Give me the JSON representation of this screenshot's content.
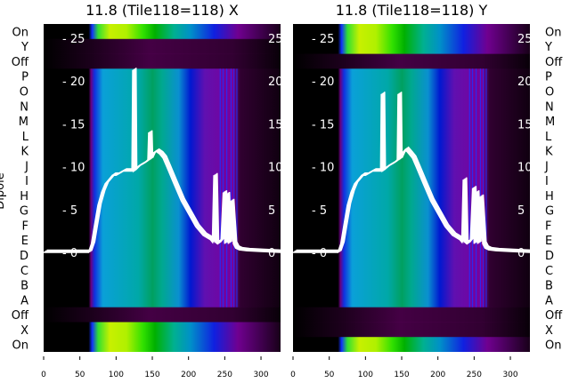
{
  "chart_data": {
    "type": "heatmap",
    "ylabel": "Dipole",
    "row_labels": [
      "On",
      "Y",
      "Off",
      "P",
      "O",
      "N",
      "M",
      "L",
      "K",
      "J",
      "I",
      "H",
      "G",
      "F",
      "E",
      "D",
      "C",
      "B",
      "A",
      "Off",
      "X",
      "On"
    ],
    "x_ticks": [
      0,
      50,
      100,
      150,
      200,
      250,
      300
    ],
    "xlim": [
      0,
      327
    ],
    "overlay_ticks": [
      0,
      5,
      10,
      15,
      20,
      25
    ],
    "overlay_ylim": [
      0,
      25
    ],
    "panels": [
      {
        "title": "11.8 (Tile118=118) X",
        "bright_rows": [
          "On-top",
          "X",
          "On-bottom"
        ],
        "bright_top": 1,
        "bright_bottom": 2,
        "curve": {
          "x": [
            0,
            62,
            66,
            70,
            75,
            80,
            85,
            90,
            95,
            100,
            110,
            120,
            122,
            123,
            124,
            130,
            140,
            144,
            145,
            146,
            150,
            155,
            160,
            165,
            170,
            180,
            190,
            200,
            210,
            220,
            230,
            233,
            235,
            237,
            240,
            245,
            248,
            250,
            252,
            255,
            258,
            262,
            265,
            270,
            280,
            300,
            327
          ],
          "y": [
            0,
            0,
            1,
            3,
            5.5,
            7,
            8,
            8.5,
            9,
            9,
            9.5,
            9.5,
            9.5,
            21.3,
            9.5,
            10,
            10.5,
            10.8,
            14,
            10.8,
            11.5,
            11.8,
            11.5,
            11,
            10,
            8,
            6,
            4.5,
            3,
            2,
            1.5,
            1.2,
            9,
            1.2,
            1,
            1.5,
            7,
            1,
            6.8,
            1,
            6,
            1,
            0.5,
            0.3,
            0.2,
            0.1,
            0
          ]
        }
      },
      {
        "title": "11.8 (Tile118=118) Y",
        "bright_top": 2,
        "bright_bottom": 1,
        "curve": {
          "x": [
            0,
            62,
            66,
            70,
            75,
            80,
            85,
            90,
            95,
            100,
            110,
            120,
            121,
            122,
            123,
            130,
            140,
            144,
            145,
            146,
            150,
            155,
            160,
            165,
            170,
            180,
            190,
            200,
            210,
            220,
            230,
            233,
            235,
            237,
            240,
            245,
            248,
            250,
            252,
            255,
            258,
            262,
            265,
            270,
            280,
            300,
            327
          ],
          "y": [
            0,
            0,
            1,
            3,
            5.5,
            7,
            8,
            8.5,
            9,
            9,
            9.5,
            9.5,
            9.5,
            18.5,
            9.5,
            10,
            10.5,
            10.8,
            18.5,
            10.8,
            11.5,
            12,
            11.5,
            11,
            10,
            8,
            6,
            4.5,
            3,
            2,
            1.5,
            1.2,
            8.5,
            1.2,
            1,
            1.5,
            7.5,
            1,
            7,
            1,
            6.5,
            1,
            0.5,
            0.3,
            0.2,
            0.1,
            0
          ]
        }
      }
    ]
  }
}
